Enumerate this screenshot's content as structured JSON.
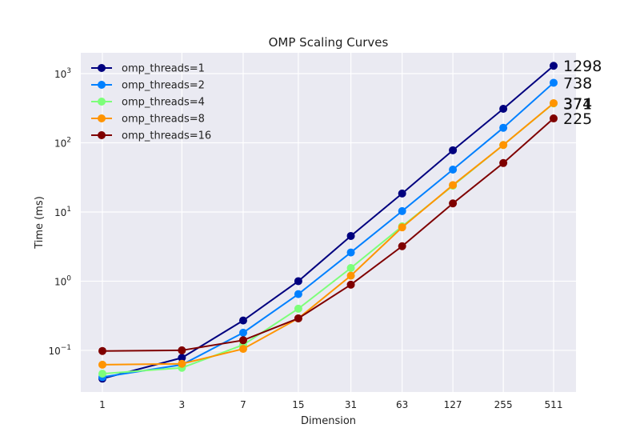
{
  "chart_data": {
    "type": "line",
    "title": "OMP Scaling Curves",
    "xlabel": "Dimension",
    "ylabel": "Time (ms)",
    "x_scale": "log",
    "y_scale": "log",
    "x_ticks": [
      "1",
      "3",
      "7",
      "15",
      "31",
      "63",
      "127",
      "255",
      "511"
    ],
    "x": [
      1,
      3,
      7,
      15,
      31,
      63,
      127,
      255,
      511
    ],
    "ylim": [
      0.025,
      2000
    ],
    "y_ticks": [
      0.1,
      1,
      10,
      100,
      1000
    ],
    "grid": true,
    "legend_position": "top-left",
    "series": [
      {
        "name": "omp_threads=1",
        "color": "#00007f",
        "values": [
          0.039,
          0.078,
          0.27,
          1.0,
          4.5,
          18.5,
          78,
          310,
          1298
        ],
        "end_label": "1298"
      },
      {
        "name": "omp_threads=2",
        "color": "#0080ff",
        "values": [
          0.041,
          0.062,
          0.18,
          0.65,
          2.6,
          10.3,
          41,
          165,
          738
        ],
        "end_label": "738"
      },
      {
        "name": "omp_threads=4",
        "color": "#7dff7a",
        "values": [
          0.046,
          0.056,
          0.12,
          0.4,
          1.55,
          6.2,
          24,
          93,
          371
        ],
        "end_label": "371"
      },
      {
        "name": "omp_threads=8",
        "color": "#ff9400",
        "values": [
          0.062,
          0.064,
          0.105,
          0.29,
          1.2,
          6.0,
          24.5,
          93,
          374
        ],
        "end_label": "374"
      },
      {
        "name": "omp_threads=16",
        "color": "#7f0000",
        "values": [
          0.098,
          0.1,
          0.14,
          0.29,
          0.89,
          3.2,
          13.3,
          51,
          225
        ],
        "end_label": "225"
      }
    ]
  }
}
